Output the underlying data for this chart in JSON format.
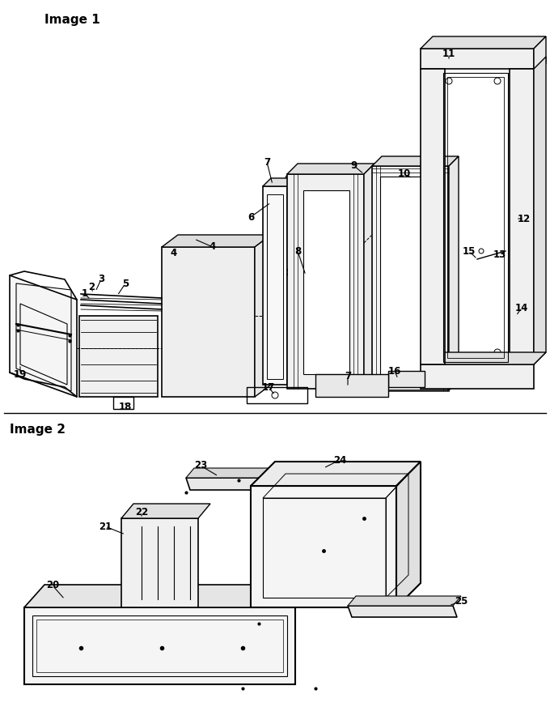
{
  "bg_color": "#ffffff",
  "line_color": "#000000",
  "image1_label": "Image 1",
  "image2_label": "Image 2",
  "figsize": [
    6.8,
    8.94
  ],
  "dpi": 100
}
